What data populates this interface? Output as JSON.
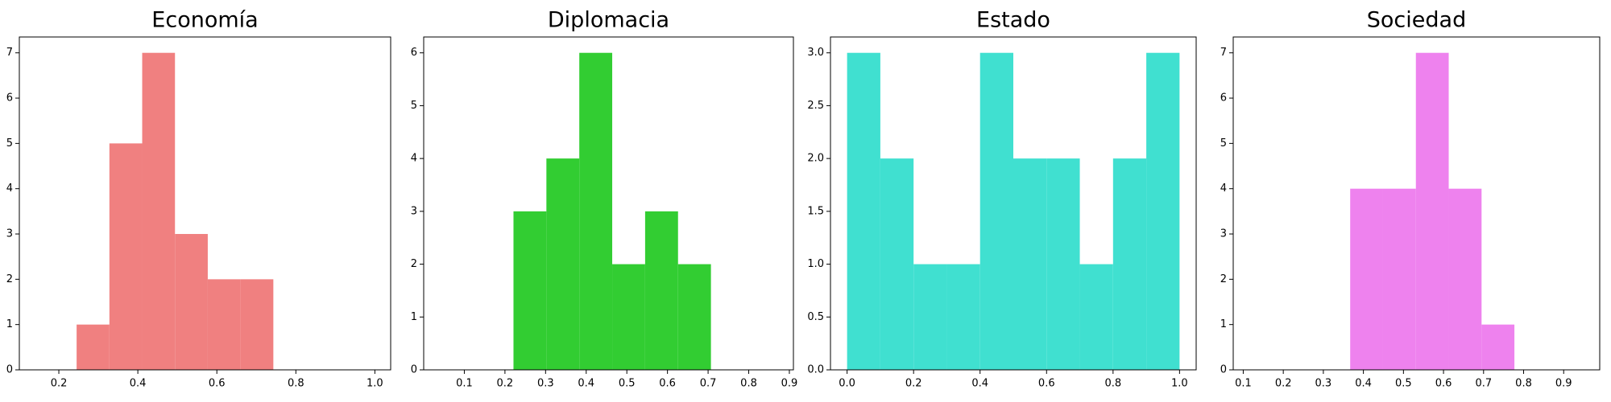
{
  "chart_data": [
    {
      "type": "histogram",
      "title": "Economía",
      "color": "#f08080",
      "bins": [
        0.245,
        0.328,
        0.411,
        0.494,
        0.577,
        0.66,
        0.743
      ],
      "values": [
        1,
        5,
        7,
        3,
        2,
        2
      ],
      "xlim": [
        0.1,
        1.04
      ],
      "xticks": [
        0.2,
        0.4,
        0.6,
        0.8,
        {
          "value": 1.0,
          "label": "1.0"
        }
      ],
      "ylim": [
        0,
        7.35
      ],
      "yticks": [
        0,
        1,
        2,
        3,
        4,
        5,
        6,
        7
      ]
    },
    {
      "type": "histogram",
      "title": "Diplomacia",
      "color": "#32cd32",
      "bins": [
        0.221,
        0.302,
        0.383,
        0.464,
        0.545,
        0.626,
        0.707
      ],
      "values": [
        3,
        4,
        6,
        2,
        3,
        2
      ],
      "xlim": [
        0.0,
        0.91
      ],
      "xticks": [
        0.1,
        0.2,
        0.3,
        0.4,
        0.5,
        0.6,
        0.7,
        0.8,
        0.9
      ],
      "ylim": [
        0,
        6.3
      ],
      "yticks": [
        0,
        1,
        2,
        3,
        4,
        5,
        6
      ]
    },
    {
      "type": "histogram",
      "title": "Estado",
      "color": "#40e0d0",
      "bins": [
        0.0,
        0.1,
        0.2,
        0.3,
        0.4,
        0.5,
        0.6,
        0.7,
        0.8,
        0.9,
        1.0
      ],
      "values": [
        3,
        2,
        1,
        1,
        3,
        2,
        2,
        1,
        2,
        3
      ],
      "xlim": [
        -0.05,
        1.05
      ],
      "xticks": [
        {
          "value": 0.0,
          "label": "0.0"
        },
        0.2,
        0.4,
        0.6,
        0.8,
        {
          "value": 1.0,
          "label": "1.0"
        }
      ],
      "ylim": [
        0,
        3.15
      ],
      "yticks": [
        {
          "value": 0.0,
          "label": "0.0"
        },
        0.5,
        {
          "value": 1.0,
          "label": "1.0"
        },
        1.5,
        {
          "value": 2.0,
          "label": "2.0"
        },
        2.5,
        {
          "value": 3.0,
          "label": "3.0"
        }
      ]
    },
    {
      "type": "histogram",
      "title": "Sociedad",
      "color": "#ee82ee",
      "bins": [
        0.367,
        0.449,
        0.531,
        0.613,
        0.695,
        0.777
      ],
      "values": [
        4,
        4,
        7,
        4,
        1
      ],
      "xlim": [
        0.075,
        0.99
      ],
      "xticks": [
        0.1,
        0.2,
        0.3,
        0.4,
        0.5,
        0.6,
        0.7,
        0.8,
        0.9
      ],
      "ylim": [
        0,
        7.35
      ],
      "yticks": [
        0,
        1,
        2,
        3,
        4,
        5,
        6,
        7
      ]
    }
  ]
}
